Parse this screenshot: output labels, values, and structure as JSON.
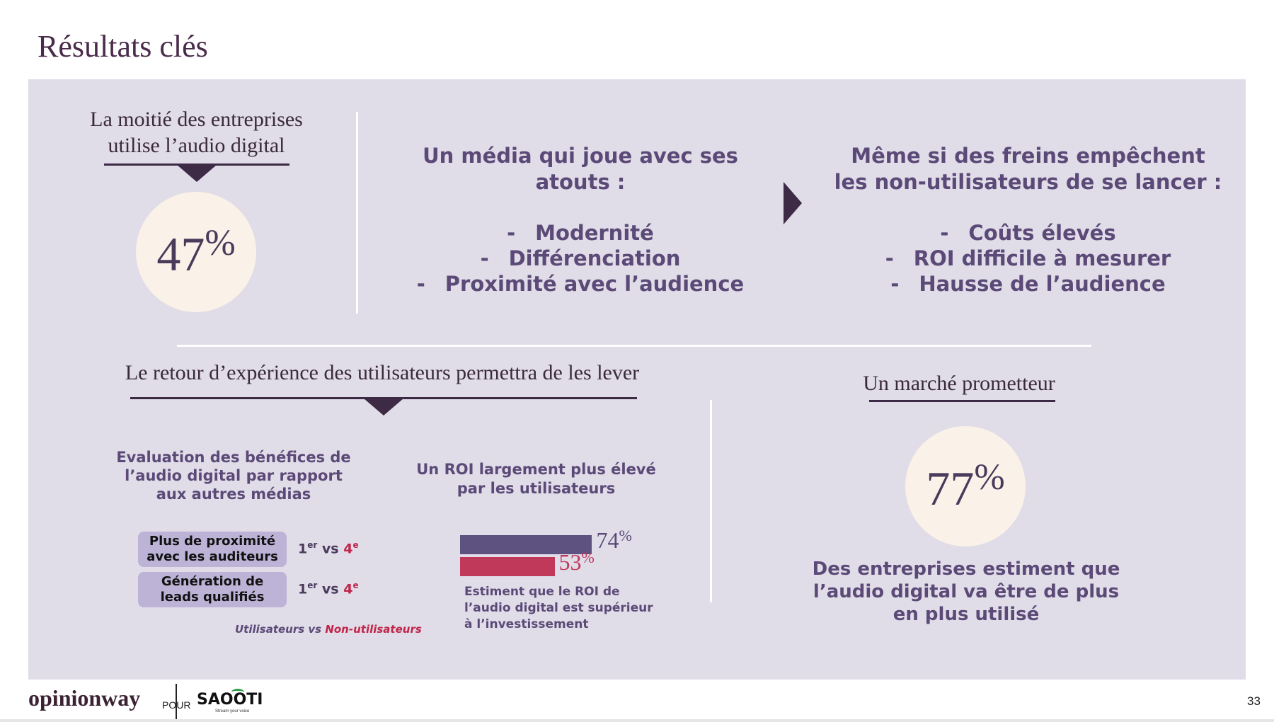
{
  "title": "Résultats clés",
  "left_top": {
    "heading_line1": "La moitié des entreprises",
    "heading_line2": "utilise l’audio digital",
    "stat_value": "47",
    "stat_unit": "%"
  },
  "middle_top": {
    "heading_line1": "Un média qui joue avec ses",
    "heading_line2": "atouts :",
    "dash": "-",
    "items": [
      "Modernité",
      "Différenciation",
      "Proximité avec l’audience"
    ]
  },
  "right_top": {
    "heading_line1": "Même si des freins empêchent",
    "heading_line2": "les non-utilisateurs de se lancer :",
    "dash": "-",
    "items": [
      "Coûts élevés",
      "ROI difficile à mesurer",
      "Hausse de l’audience"
    ]
  },
  "bottom_left": {
    "heading": "Le retour d’expérience des utilisateurs permettra de les lever",
    "eval_title_line1": "Evaluation des bénéfices de",
    "eval_title_line2": "l’audio digital par rapport",
    "eval_title_line3": "aux autres médias",
    "pills": [
      {
        "line1": "Plus de proximité",
        "line2": "avec les auditeurs",
        "rank_user": "1",
        "rank_user_sup": "er",
        "vs": "vs",
        "rank_non": "4",
        "rank_non_sup": "e"
      },
      {
        "line1": "Génération de",
        "line2": "leads qualifiés",
        "rank_user": "1",
        "rank_user_sup": "er",
        "vs": "vs",
        "rank_non": "4",
        "rank_non_sup": "e"
      }
    ],
    "legend_users": "Utilisateurs vs ",
    "legend_non_users": "Non-utilisateurs",
    "roi_title_line1": "Un ROI largement plus élevé",
    "roi_title_line2": "par les utilisateurs",
    "roi_caption_line1": "Estiment que le ROI de",
    "roi_caption_line2": "l’audio digital est supérieur",
    "roi_caption_line3": "à l’investissement"
  },
  "chart_data": {
    "type": "bar",
    "orientation": "horizontal",
    "categories": [
      "Utilisateurs",
      "Non-utilisateurs"
    ],
    "values": [
      74,
      53
    ],
    "value_labels": [
      "74",
      "53"
    ],
    "unit": "%",
    "colors": [
      "#5e5280",
      "#c0395a"
    ],
    "xlim": [
      0,
      100
    ]
  },
  "bottom_right": {
    "heading": "Un marché prometteur",
    "stat_value": "77",
    "stat_unit": "%",
    "caption_line1": "Des entreprises estiment que",
    "caption_line2": "l’audio digital va être de plus",
    "caption_line3": "en plus utilisé"
  },
  "footer": {
    "logo": "opinionway",
    "pour": "POUR",
    "partner_logo": "SAOOTI",
    "partner_tagline": "Stream your voice",
    "page_number": "33"
  },
  "colors": {
    "panel_bg": "#e0dce8",
    "accent_dark": "#3d2a45",
    "text_purple": "#5b4a77",
    "highlight_red": "#c0264a",
    "circle_bg": "#faf2e8"
  }
}
